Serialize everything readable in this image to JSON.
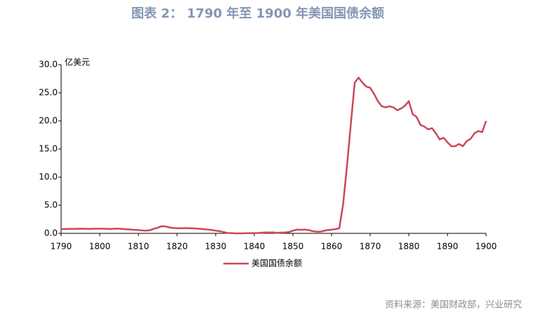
{
  "chart_data": {
    "type": "line",
    "title": "图表 2： 1790 年至 1900 年美国国债余额",
    "y_axis_label": "亿美元",
    "source": "资料来源：美国财政部，兴业研究",
    "x": [
      1790,
      1791,
      1792,
      1793,
      1794,
      1795,
      1796,
      1797,
      1798,
      1799,
      1800,
      1801,
      1802,
      1803,
      1804,
      1805,
      1806,
      1807,
      1808,
      1809,
      1810,
      1811,
      1812,
      1813,
      1814,
      1815,
      1816,
      1817,
      1818,
      1819,
      1820,
      1821,
      1822,
      1823,
      1824,
      1825,
      1826,
      1827,
      1828,
      1829,
      1830,
      1831,
      1832,
      1833,
      1834,
      1835,
      1836,
      1837,
      1838,
      1839,
      1840,
      1841,
      1842,
      1843,
      1844,
      1845,
      1846,
      1847,
      1848,
      1849,
      1850,
      1851,
      1852,
      1853,
      1854,
      1855,
      1856,
      1857,
      1858,
      1859,
      1860,
      1861,
      1862,
      1863,
      1864,
      1865,
      1866,
      1867,
      1868,
      1869,
      1870,
      1871,
      1872,
      1873,
      1874,
      1875,
      1876,
      1877,
      1878,
      1879,
      1880,
      1881,
      1882,
      1883,
      1884,
      1885,
      1886,
      1887,
      1888,
      1889,
      1890,
      1891,
      1892,
      1893,
      1894,
      1895,
      1896,
      1897,
      1898,
      1899,
      1900
    ],
    "series": [
      {
        "name": "美国国债余额",
        "color": "#c9485b",
        "values": [
          0.75,
          0.77,
          0.8,
          0.8,
          0.8,
          0.83,
          0.82,
          0.8,
          0.8,
          0.83,
          0.83,
          0.81,
          0.8,
          0.78,
          0.85,
          0.83,
          0.78,
          0.72,
          0.68,
          0.62,
          0.58,
          0.52,
          0.48,
          0.55,
          0.82,
          0.99,
          1.27,
          1.23,
          1.06,
          0.95,
          0.91,
          0.9,
          0.93,
          0.91,
          0.9,
          0.84,
          0.81,
          0.74,
          0.68,
          0.59,
          0.49,
          0.39,
          0.24,
          0.07,
          0.05,
          0.0,
          0.0,
          0.0,
          0.03,
          0.03,
          0.05,
          0.06,
          0.13,
          0.15,
          0.16,
          0.16,
          0.1,
          0.14,
          0.16,
          0.24,
          0.47,
          0.68,
          0.63,
          0.68,
          0.6,
          0.4,
          0.32,
          0.29,
          0.45,
          0.58,
          0.65,
          0.75,
          0.9,
          5.2,
          12.0,
          19.5,
          26.8,
          27.7,
          26.8,
          26.1,
          25.9,
          24.8,
          23.5,
          22.6,
          22.4,
          22.6,
          22.4,
          21.9,
          22.2,
          22.7,
          23.5,
          21.2,
          20.7,
          19.3,
          19.0,
          18.5,
          18.7,
          17.8,
          16.7,
          17.0,
          16.2,
          15.5,
          15.5,
          15.9,
          15.5,
          16.4,
          16.8,
          17.8,
          18.2,
          18.0,
          20.0
        ]
      }
    ],
    "xlim": [
      1790,
      1900
    ],
    "xticks": [
      1790,
      1800,
      1810,
      1820,
      1830,
      1840,
      1850,
      1860,
      1870,
      1880,
      1890,
      1900
    ],
    "ylim": [
      0,
      30
    ],
    "yticks": [
      {
        "value": 0,
        "label": "0.0"
      },
      {
        "value": 5,
        "label": "5.0"
      },
      {
        "value": 10,
        "label": "10.0"
      },
      {
        "value": 15,
        "label": "15.0"
      },
      {
        "value": 20,
        "label": "20.0"
      },
      {
        "value": 25,
        "label": "25.0"
      },
      {
        "value": 30,
        "label": "30.0"
      }
    ],
    "grid": false,
    "legend": "bottom"
  }
}
